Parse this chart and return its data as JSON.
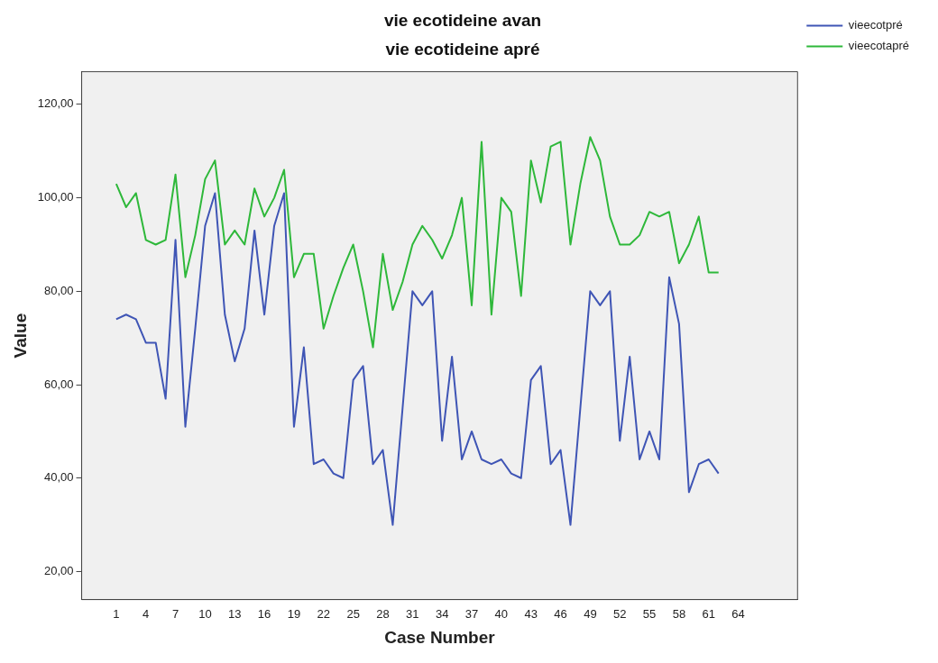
{
  "chart_data": {
    "type": "line",
    "title": "vie ecotideine avan",
    "subtitle": "vie ecotideine apré",
    "xlabel": "Case Number",
    "ylabel": "Value",
    "x": [
      1,
      2,
      3,
      4,
      5,
      6,
      7,
      8,
      9,
      10,
      11,
      12,
      13,
      14,
      15,
      16,
      17,
      18,
      19,
      20,
      21,
      22,
      23,
      24,
      25,
      26,
      27,
      28,
      29,
      30,
      31,
      32,
      33,
      34,
      35,
      36,
      37,
      38,
      39,
      40,
      41,
      42,
      43,
      44,
      45,
      46,
      47,
      48,
      49,
      50,
      51,
      52,
      53,
      54,
      55,
      56,
      57,
      58,
      59,
      60,
      61,
      62
    ],
    "series": [
      {
        "name": "vieecotpré",
        "color": "#3f55b5",
        "values": [
          74,
          75,
          74,
          69,
          69,
          57,
          91,
          51,
          72,
          94,
          101,
          75,
          65,
          72,
          93,
          75,
          94,
          101,
          51,
          68,
          43,
          44,
          41,
          40,
          61,
          64,
          43,
          46,
          30,
          55,
          80,
          77,
          80,
          48,
          66,
          44,
          50,
          44,
          43,
          44,
          41,
          40,
          61,
          64,
          43,
          46,
          30,
          55,
          80,
          77,
          80,
          48,
          66,
          44,
          50,
          44,
          83,
          73,
          37,
          43,
          44,
          41
        ]
      },
      {
        "name": "vieecotapré",
        "color": "#2eb83a",
        "values": [
          103,
          98,
          101,
          91,
          90,
          91,
          105,
          83,
          92,
          104,
          108,
          90,
          93,
          90,
          102,
          96,
          100,
          106,
          83,
          88,
          88,
          72,
          79,
          85,
          90,
          80,
          68,
          88,
          76,
          82,
          90,
          94,
          91,
          87,
          92,
          100,
          77,
          112,
          75,
          100,
          97,
          79,
          108,
          99,
          111,
          112,
          90,
          103,
          113,
          108,
          96,
          90,
          90,
          92,
          97,
          96,
          97,
          86,
          90,
          96,
          84,
          84
        ]
      }
    ],
    "xlim": [
      -2.5,
      70
    ],
    "xticks": [
      1,
      4,
      7,
      10,
      13,
      16,
      19,
      22,
      25,
      28,
      31,
      34,
      37,
      40,
      43,
      46,
      49,
      52,
      55,
      58,
      61,
      64
    ],
    "ylim": [
      14,
      127
    ],
    "yticks": [
      {
        "value": 20,
        "label": "20,00"
      },
      {
        "value": 40,
        "label": "40,00"
      },
      {
        "value": 60,
        "label": "60,00"
      },
      {
        "value": 80,
        "label": "80,00"
      },
      {
        "value": 100,
        "label": "100,00"
      },
      {
        "value": 120,
        "label": "120,00"
      }
    ],
    "legend": "top right",
    "grid": false,
    "marker": "none",
    "line_style": "solid"
  }
}
